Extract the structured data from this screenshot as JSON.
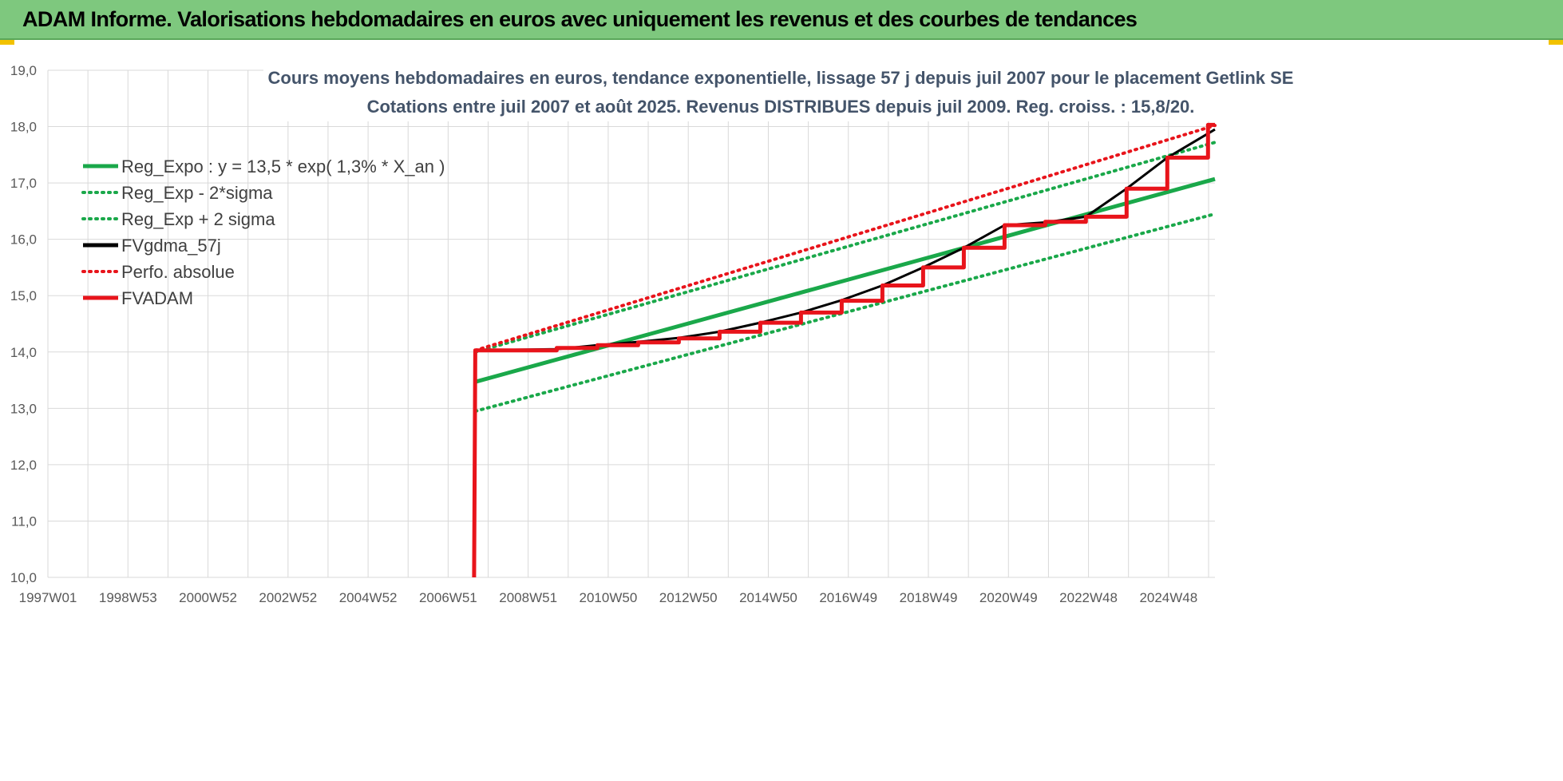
{
  "header": {
    "title": "ADAM Informe. Valorisations hebdomadaires en euros avec uniquement les revenus et des courbes de tendances"
  },
  "colors": {
    "header_bg": "#7ec87e",
    "green": "#1aa84a",
    "black": "#000000",
    "red": "#e8141b",
    "title": "#44546a",
    "grid": "#d9d9d9"
  },
  "chart_data": {
    "type": "line",
    "title": "Cours moyens hebdomadaires en euros, tendance exponentielle, lissage 57 j depuis juil 2007 pour le placement Getlink SE",
    "subtitle": "Cotations entre juil 2007 et août 2025. Revenus DISTRIBUES depuis juil 2009. Reg. croiss. : 15,8/20.",
    "xlabel": "",
    "ylabel": "",
    "x_tick_labels": [
      "1997W01",
      "1998W53",
      "2000W52",
      "2002W52",
      "2004W52",
      "2006W51",
      "2008W51",
      "2010W50",
      "2012W50",
      "2014W50",
      "2016W49",
      "2018W49",
      "2020W49",
      "2022W48",
      "2024W48"
    ],
    "y_tick_labels": [
      "10,0",
      "11,0",
      "12,0",
      "13,0",
      "14,0",
      "15,0",
      "16,0",
      "17,0",
      "18,0",
      "19,0"
    ],
    "xlim": [
      1997.0,
      2025.67
    ],
    "ylim": [
      10,
      19
    ],
    "grid": true,
    "legend_position": "top-left",
    "series": [
      {
        "name": "Reg_Expo : y = 13,5 * exp( 1,3% *  X_an )",
        "color": "#1aa84a",
        "style": "solid",
        "points": [
          [
            2007.5,
            13.47
          ],
          [
            2025.67,
            17.07
          ]
        ]
      },
      {
        "name": "Reg_Exp - 2*sigma",
        "color": "#1aa84a",
        "style": "dotted",
        "points": [
          [
            2007.5,
            12.95
          ],
          [
            2025.67,
            16.45
          ]
        ]
      },
      {
        "name": "Reg_Exp + 2 sigma",
        "color": "#1aa84a",
        "style": "dotted",
        "points": [
          [
            2007.5,
            14.0
          ],
          [
            2025.67,
            17.72
          ]
        ]
      },
      {
        "name": "FVgdma_57j",
        "color": "#000000",
        "style": "solid",
        "points": [
          [
            2007.5,
            14.03
          ],
          [
            2009.5,
            14.05
          ],
          [
            2010.5,
            14.12
          ],
          [
            2011.5,
            14.18
          ],
          [
            2012.5,
            14.25
          ],
          [
            2013.5,
            14.36
          ],
          [
            2014.5,
            14.52
          ],
          [
            2015.5,
            14.7
          ],
          [
            2016.5,
            14.92
          ],
          [
            2017.5,
            15.18
          ],
          [
            2018.5,
            15.5
          ],
          [
            2019.5,
            15.85
          ],
          [
            2020.5,
            16.25
          ],
          [
            2021.5,
            16.3
          ],
          [
            2022.5,
            16.4
          ],
          [
            2023.5,
            16.9
          ],
          [
            2024.5,
            17.45
          ],
          [
            2025.67,
            17.95
          ]
        ]
      },
      {
        "name": "Perfo. absolue",
        "color": "#e8141b",
        "style": "dotted",
        "points": [
          [
            2007.5,
            14.03
          ],
          [
            2025.67,
            18.02
          ]
        ]
      },
      {
        "name": "FVADAM",
        "color": "#e8141b",
        "style": "solid",
        "points": [
          [
            2007.47,
            10.0
          ],
          [
            2007.5,
            14.03
          ],
          [
            2009.5,
            14.03
          ],
          [
            2009.5,
            14.07
          ],
          [
            2010.5,
            14.07
          ],
          [
            2010.5,
            14.12
          ],
          [
            2011.5,
            14.12
          ],
          [
            2011.5,
            14.17
          ],
          [
            2012.5,
            14.17
          ],
          [
            2012.5,
            14.24
          ],
          [
            2013.5,
            14.24
          ],
          [
            2013.5,
            14.36
          ],
          [
            2014.5,
            14.36
          ],
          [
            2014.5,
            14.52
          ],
          [
            2015.5,
            14.52
          ],
          [
            2015.5,
            14.7
          ],
          [
            2016.5,
            14.7
          ],
          [
            2016.5,
            14.91
          ],
          [
            2017.5,
            14.91
          ],
          [
            2017.5,
            15.18
          ],
          [
            2018.5,
            15.18
          ],
          [
            2018.5,
            15.5
          ],
          [
            2019.5,
            15.5
          ],
          [
            2019.5,
            15.85
          ],
          [
            2020.5,
            15.85
          ],
          [
            2020.5,
            16.25
          ],
          [
            2021.5,
            16.25
          ],
          [
            2021.5,
            16.31
          ],
          [
            2022.5,
            16.31
          ],
          [
            2022.5,
            16.4
          ],
          [
            2023.5,
            16.4
          ],
          [
            2023.5,
            16.9
          ],
          [
            2024.5,
            16.9
          ],
          [
            2024.5,
            17.45
          ],
          [
            2025.5,
            17.45
          ],
          [
            2025.5,
            18.03
          ],
          [
            2025.67,
            18.03
          ]
        ]
      }
    ]
  }
}
